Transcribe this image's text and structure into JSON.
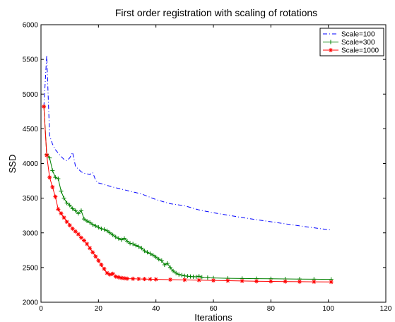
{
  "chart_data": {
    "type": "line",
    "title": "First order registration with scaling of rotations",
    "xlabel": "Iterations",
    "ylabel": "SSD",
    "xlim": [
      0,
      120
    ],
    "ylim": [
      2000,
      6000
    ],
    "xticks": [
      0,
      20,
      40,
      60,
      80,
      100,
      120
    ],
    "yticks": [
      2000,
      2500,
      3000,
      3500,
      4000,
      4500,
      5000,
      5500,
      6000
    ],
    "grid": false,
    "legend_position": "top-right",
    "series": [
      {
        "name": "Scale=100",
        "color": "#0000ff",
        "line_style": "dash-dot",
        "marker": "none",
        "points": [
          [
            1,
            4820
          ],
          [
            2,
            5560
          ],
          [
            3,
            4400
          ],
          [
            4,
            4280
          ],
          [
            5,
            4200
          ],
          [
            6,
            4150
          ],
          [
            7,
            4100
          ],
          [
            8,
            4060
          ],
          [
            9,
            4040
          ],
          [
            10,
            4080
          ],
          [
            11,
            4160
          ],
          [
            12,
            3960
          ],
          [
            13,
            3920
          ],
          [
            14,
            3880
          ],
          [
            15,
            3860
          ],
          [
            16,
            3850
          ],
          [
            17,
            3840
          ],
          [
            18,
            3870
          ],
          [
            19,
            3760
          ],
          [
            20,
            3720
          ],
          [
            25,
            3660
          ],
          [
            30,
            3610
          ],
          [
            35,
            3560
          ],
          [
            40,
            3480
          ],
          [
            45,
            3420
          ],
          [
            50,
            3390
          ],
          [
            55,
            3330
          ],
          [
            60,
            3290
          ],
          [
            70,
            3220
          ],
          [
            80,
            3160
          ],
          [
            90,
            3100
          ],
          [
            101,
            3040
          ]
        ]
      },
      {
        "name": "Scale=300",
        "color": "#008000",
        "line_style": "solid",
        "marker": "plus",
        "points": [
          [
            1,
            4820
          ],
          [
            2,
            4130
          ],
          [
            3,
            4080
          ],
          [
            4,
            3900
          ],
          [
            5,
            3800
          ],
          [
            6,
            3780
          ],
          [
            7,
            3600
          ],
          [
            8,
            3500
          ],
          [
            9,
            3430
          ],
          [
            10,
            3400
          ],
          [
            11,
            3350
          ],
          [
            12,
            3320
          ],
          [
            13,
            3280
          ],
          [
            14,
            3320
          ],
          [
            15,
            3200
          ],
          [
            16,
            3170
          ],
          [
            17,
            3150
          ],
          [
            18,
            3120
          ],
          [
            19,
            3100
          ],
          [
            20,
            3080
          ],
          [
            21,
            3060
          ],
          [
            22,
            3050
          ],
          [
            23,
            3030
          ],
          [
            24,
            3000
          ],
          [
            25,
            2970
          ],
          [
            26,
            2940
          ],
          [
            27,
            2920
          ],
          [
            28,
            2900
          ],
          [
            29,
            2920
          ],
          [
            30,
            2880
          ],
          [
            31,
            2850
          ],
          [
            32,
            2840
          ],
          [
            33,
            2820
          ],
          [
            34,
            2800
          ],
          [
            35,
            2780
          ],
          [
            36,
            2740
          ],
          [
            37,
            2720
          ],
          [
            38,
            2700
          ],
          [
            39,
            2680
          ],
          [
            40,
            2650
          ],
          [
            41,
            2620
          ],
          [
            42,
            2600
          ],
          [
            43,
            2540
          ],
          [
            44,
            2560
          ],
          [
            45,
            2500
          ],
          [
            46,
            2450
          ],
          [
            47,
            2420
          ],
          [
            48,
            2400
          ],
          [
            49,
            2390
          ],
          [
            50,
            2380
          ],
          [
            51,
            2375
          ],
          [
            52,
            2370
          ],
          [
            53,
            2368
          ],
          [
            54,
            2366
          ],
          [
            55,
            2375
          ],
          [
            56,
            2360
          ],
          [
            58,
            2355
          ],
          [
            60,
            2350
          ],
          [
            65,
            2345
          ],
          [
            70,
            2342
          ],
          [
            75,
            2340
          ],
          [
            80,
            2338
          ],
          [
            85,
            2336
          ],
          [
            90,
            2334
          ],
          [
            95,
            2332
          ],
          [
            101,
            2330
          ]
        ]
      },
      {
        "name": "Scale=1000",
        "color": "#ff0000",
        "line_style": "solid",
        "marker": "star",
        "points": [
          [
            1,
            4820
          ],
          [
            2,
            4120
          ],
          [
            3,
            3800
          ],
          [
            4,
            3660
          ],
          [
            5,
            3520
          ],
          [
            6,
            3340
          ],
          [
            7,
            3280
          ],
          [
            8,
            3220
          ],
          [
            9,
            3160
          ],
          [
            10,
            3110
          ],
          [
            11,
            3060
          ],
          [
            12,
            3020
          ],
          [
            13,
            2980
          ],
          [
            14,
            2930
          ],
          [
            15,
            2890
          ],
          [
            16,
            2840
          ],
          [
            17,
            2780
          ],
          [
            18,
            2720
          ],
          [
            19,
            2660
          ],
          [
            20,
            2600
          ],
          [
            21,
            2540
          ],
          [
            22,
            2480
          ],
          [
            23,
            2420
          ],
          [
            24,
            2400
          ],
          [
            25,
            2410
          ],
          [
            26,
            2370
          ],
          [
            27,
            2360
          ],
          [
            28,
            2350
          ],
          [
            29,
            2345
          ],
          [
            30,
            2340
          ],
          [
            32,
            2338
          ],
          [
            34,
            2336
          ],
          [
            36,
            2334
          ],
          [
            38,
            2332
          ],
          [
            40,
            2330
          ],
          [
            45,
            2326
          ],
          [
            50,
            2322
          ],
          [
            55,
            2318
          ],
          [
            60,
            2314
          ],
          [
            65,
            2310
          ],
          [
            70,
            2306
          ],
          [
            75,
            2302
          ],
          [
            80,
            2300
          ],
          [
            85,
            2298
          ],
          [
            90,
            2296
          ],
          [
            95,
            2294
          ],
          [
            101,
            2292
          ]
        ]
      }
    ]
  }
}
